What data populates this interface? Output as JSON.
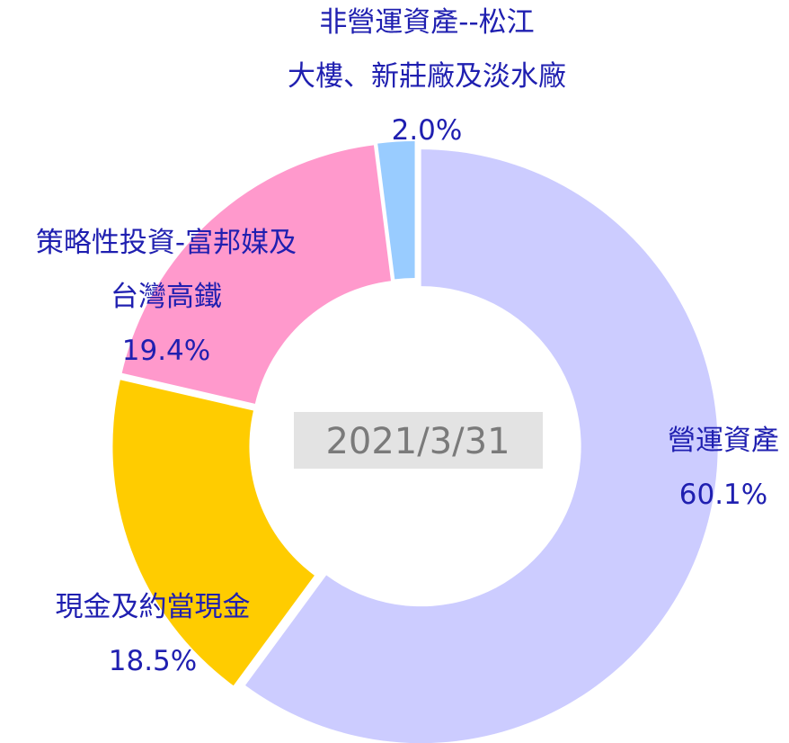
{
  "chart_data": {
    "type": "donut",
    "center_label": "2021/3/31",
    "categories": [
      "營運資產",
      "現金及約當現金",
      "策略性投資-富邦媒及台灣高鐵",
      "非營運資產--松江大樓、新莊廠及淡水廠"
    ],
    "values": [
      60.1,
      18.5,
      19.4,
      2.0
    ],
    "value_labels": [
      "60.1%",
      "18.5%",
      "19.4%",
      "2.0%"
    ],
    "colors": [
      "#ccccff",
      "#ffcc00",
      "#ff99cc",
      "#99ccff"
    ]
  }
}
